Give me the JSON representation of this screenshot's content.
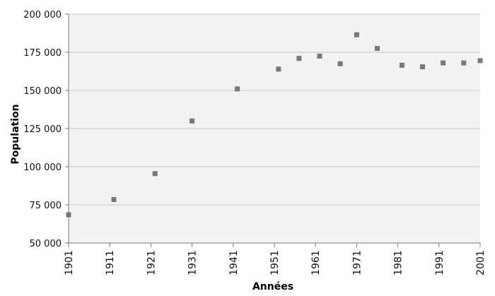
{
  "chart_data": {
    "type": "scatter",
    "xlabel": "Années",
    "ylabel": "Population",
    "xlim": [
      1901,
      2001
    ],
    "ylim": [
      50000,
      200000
    ],
    "x_ticks": [
      1901,
      1911,
      1921,
      1931,
      1941,
      1951,
      1961,
      1971,
      1981,
      1991,
      2001
    ],
    "x_tick_labels": [
      "1901",
      "1911",
      "1921",
      "1931",
      "1941",
      "1951",
      "1961",
      "1971",
      "1981",
      "1991",
      "2001"
    ],
    "y_ticks": [
      50000,
      75000,
      100000,
      125000,
      150000,
      175000,
      200000
    ],
    "y_tick_labels": [
      "50 000",
      "75 000",
      "100 000",
      "125 000",
      "150 000",
      "175 000",
      "200 000"
    ],
    "grid": "horizontal",
    "plot_background": "#f2f2f2",
    "grid_color": "#c8c8c8",
    "marker_color": "#777777",
    "marker_shape": "square",
    "x": [
      1901,
      1912,
      1922,
      1931,
      1942,
      1952,
      1957,
      1962,
      1967,
      1971,
      1976,
      1982,
      1987,
      1992,
      1997,
      2001
    ],
    "values": [
      68500,
      78500,
      95500,
      130000,
      151000,
      164000,
      171000,
      172500,
      167500,
      186500,
      177500,
      166500,
      165500,
      168000,
      168000,
      169500
    ]
  }
}
